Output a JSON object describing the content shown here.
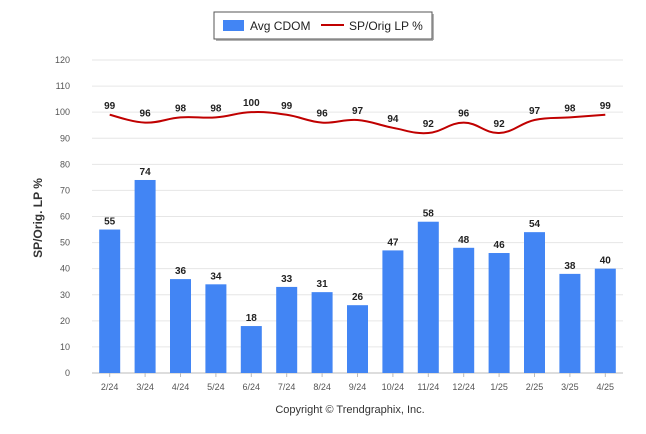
{
  "chart_data": {
    "type": "bar",
    "title": "",
    "xlabel": "",
    "ylabel": "SP/Orig. LP %",
    "ylim": [
      0,
      120
    ],
    "yticks": [
      0,
      10,
      20,
      30,
      40,
      50,
      60,
      70,
      80,
      90,
      100,
      110,
      120
    ],
    "grid": true,
    "legend_position": "top-center",
    "categories": [
      "2/24",
      "3/24",
      "4/24",
      "5/24",
      "6/24",
      "7/24",
      "8/24",
      "9/24",
      "10/24",
      "11/24",
      "12/24",
      "1/25",
      "2/25",
      "3/25",
      "4/25"
    ],
    "series": [
      {
        "name": "Avg CDOM",
        "type": "bar",
        "color": "#4285f4",
        "values": [
          55,
          74,
          36,
          34,
          18,
          33,
          31,
          26,
          47,
          58,
          48,
          46,
          54,
          38,
          40
        ]
      },
      {
        "name": "SP/Orig LP %",
        "type": "line",
        "color": "#c00000",
        "values": [
          99,
          96,
          98,
          98,
          100,
          99,
          96,
          97,
          94,
          92,
          96,
          92,
          97,
          98,
          99
        ]
      }
    ]
  },
  "footer": {
    "copyright": "Copyright © Trendgraphix, Inc."
  }
}
